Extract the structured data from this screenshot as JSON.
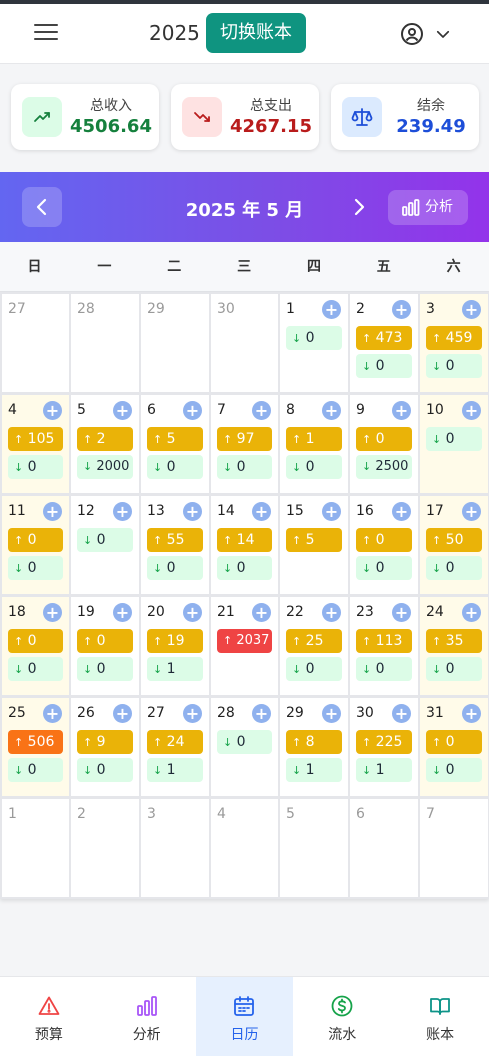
{
  "header": {
    "year": "2025",
    "switch_label": "切换账本"
  },
  "summary": [
    {
      "label": "总收入",
      "value": "4506.64",
      "color": "#15803d",
      "icon_bg": "#dcfce7",
      "icon": "trending-up-icon"
    },
    {
      "label": "总支出",
      "value": "4267.15",
      "color": "#b91c1c",
      "icon_bg": "#fee2e2",
      "icon": "trending-down-icon"
    },
    {
      "label": "结余",
      "value": "239.49",
      "color": "#1d4ed8",
      "icon_bg": "#dbeafe",
      "icon": "scale-icon"
    }
  ],
  "calendar": {
    "title": "2025 年 5 月",
    "analysis_label": "分析",
    "weekdays": [
      "日",
      "一",
      "二",
      "三",
      "四",
      "五",
      "六"
    ],
    "weeks": [
      [
        {
          "d": "27",
          "other": true
        },
        {
          "d": "28",
          "other": true
        },
        {
          "d": "29",
          "other": true
        },
        {
          "d": "30",
          "other": true
        },
        {
          "d": "1",
          "exp": "0"
        },
        {
          "d": "2",
          "inc": "473",
          "exp": "0"
        },
        {
          "d": "3",
          "inc": "459",
          "exp": "0"
        }
      ],
      [
        {
          "d": "4",
          "inc": "105",
          "exp": "0"
        },
        {
          "d": "5",
          "inc": "2",
          "exp": "2000"
        },
        {
          "d": "6",
          "inc": "5",
          "exp": "0"
        },
        {
          "d": "7",
          "inc": "97",
          "exp": "0"
        },
        {
          "d": "8",
          "inc": "1",
          "exp": "0"
        },
        {
          "d": "9",
          "inc": "0",
          "exp": "2500"
        },
        {
          "d": "10",
          "exp": "0"
        }
      ],
      [
        {
          "d": "11",
          "inc": "0",
          "exp": "0"
        },
        {
          "d": "12",
          "exp": "0"
        },
        {
          "d": "13",
          "inc": "55",
          "exp": "0"
        },
        {
          "d": "14",
          "inc": "14",
          "exp": "0"
        },
        {
          "d": "15",
          "inc": "5"
        },
        {
          "d": "16",
          "inc": "0",
          "exp": "0"
        },
        {
          "d": "17",
          "inc": "50",
          "exp": "0"
        }
      ],
      [
        {
          "d": "18",
          "inc": "0",
          "exp": "0"
        },
        {
          "d": "19",
          "inc": "0",
          "exp": "0"
        },
        {
          "d": "20",
          "inc": "19",
          "exp": "1"
        },
        {
          "d": "21",
          "inc": "2037",
          "inc_color": "red"
        },
        {
          "d": "22",
          "inc": "25",
          "exp": "0"
        },
        {
          "d": "23",
          "inc": "113",
          "exp": "0"
        },
        {
          "d": "24",
          "inc": "35",
          "exp": "0"
        }
      ],
      [
        {
          "d": "25",
          "inc": "506",
          "inc_color": "orange",
          "exp": "0"
        },
        {
          "d": "26",
          "inc": "9",
          "exp": "0"
        },
        {
          "d": "27",
          "inc": "24",
          "exp": "1"
        },
        {
          "d": "28",
          "exp": "0"
        },
        {
          "d": "29",
          "inc": "8",
          "exp": "1"
        },
        {
          "d": "30",
          "inc": "225",
          "exp": "1"
        },
        {
          "d": "31",
          "inc": "0",
          "exp": "0"
        }
      ],
      [
        {
          "d": "1",
          "other": true
        },
        {
          "d": "2",
          "other": true
        },
        {
          "d": "3",
          "other": true
        },
        {
          "d": "4",
          "other": true
        },
        {
          "d": "5",
          "other": true
        },
        {
          "d": "6",
          "other": true
        },
        {
          "d": "7",
          "other": true
        }
      ]
    ]
  },
  "tabs": [
    {
      "label": "预算",
      "icon": "alert-triangle-icon",
      "color": "#ef4444",
      "active": false
    },
    {
      "label": "分析",
      "icon": "bar-chart-icon",
      "color": "#a855f7",
      "active": false
    },
    {
      "label": "日历",
      "icon": "calendar-icon",
      "color": "#2563eb",
      "active": true
    },
    {
      "label": "流水",
      "icon": "dollar-circle-icon",
      "color": "#16a34a",
      "active": false
    },
    {
      "label": "账本",
      "icon": "book-open-icon",
      "color": "#0d9488",
      "active": false
    }
  ]
}
